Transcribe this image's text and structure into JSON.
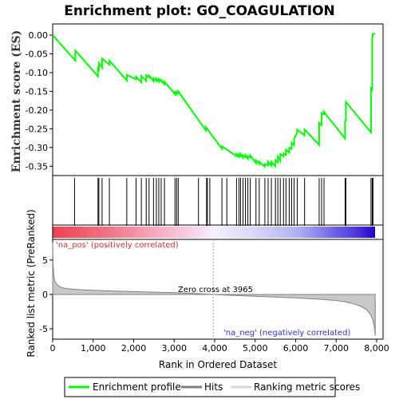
{
  "chart_data": {
    "type": "line",
    "title": "Enrichment plot: GO_COAGULATION",
    "top_panel": {
      "ylabel": "Enrichment score (ES)",
      "ylim": [
        -0.375,
        0.03
      ],
      "yticks": [
        0.0,
        -0.05,
        -0.1,
        -0.15,
        -0.2,
        -0.25,
        -0.3,
        -0.35
      ],
      "ytick_labels": [
        "0.00",
        "-0.05",
        "-0.10",
        "-0.15",
        "-0.20",
        "-0.25",
        "-0.30",
        "-0.35"
      ],
      "series": [
        {
          "name": "Enrichment profile",
          "color": "#00ff00",
          "x": [
            0,
            560,
            560,
            1120,
            1120,
            1140,
            1140,
            1220,
            1220,
            1400,
            1400,
            1830,
            1830,
            2060,
            2060,
            2190,
            2190,
            2310,
            2310,
            2380,
            2380,
            2490,
            2490,
            2560,
            2560,
            2620,
            2620,
            2680,
            2680,
            2760,
            2760,
            3020,
            3020,
            3060,
            3060,
            3100,
            3100,
            3780,
            3780,
            4180,
            4180,
            4540,
            4540,
            4600,
            4600,
            4640,
            4640,
            4700,
            4700,
            4760,
            4760,
            4820,
            4820,
            4880,
            4880,
            5020,
            5020,
            5100,
            5100,
            5240,
            5240,
            5320,
            5320,
            5400,
            5400,
            5500,
            5500,
            5560,
            5560,
            5620,
            5620,
            5700,
            5700,
            5760,
            5760,
            5840,
            5840,
            5900,
            5900,
            5960,
            5960,
            6040,
            6040,
            6220,
            6220,
            6580,
            6580,
            6640,
            6640,
            6700,
            6700,
            7220,
            7220,
            7240,
            7240,
            7860,
            7860,
            7890,
            7890,
            7910,
            7910,
            7960
          ],
          "y": [
            0.0,
            -0.068,
            -0.041,
            -0.11,
            -0.088,
            -0.091,
            -0.074,
            -0.087,
            -0.062,
            -0.079,
            -0.068,
            -0.121,
            -0.106,
            -0.118,
            -0.111,
            -0.126,
            -0.109,
            -0.122,
            -0.107,
            -0.113,
            -0.108,
            -0.123,
            -0.115,
            -0.122,
            -0.116,
            -0.124,
            -0.117,
            -0.123,
            -0.12,
            -0.131,
            -0.124,
            -0.158,
            -0.152,
            -0.158,
            -0.151,
            -0.155,
            -0.15,
            -0.254,
            -0.245,
            -0.303,
            -0.297,
            -0.323,
            -0.317,
            -0.325,
            -0.318,
            -0.323,
            -0.317,
            -0.327,
            -0.321,
            -0.326,
            -0.32,
            -0.33,
            -0.323,
            -0.327,
            -0.321,
            -0.342,
            -0.334,
            -0.344,
            -0.338,
            -0.351,
            -0.344,
            -0.348,
            -0.338,
            -0.349,
            -0.338,
            -0.35,
            -0.334,
            -0.34,
            -0.325,
            -0.336,
            -0.318,
            -0.324,
            -0.316,
            -0.32,
            -0.306,
            -0.314,
            -0.301,
            -0.304,
            -0.287,
            -0.294,
            -0.278,
            -0.259,
            -0.252,
            -0.268,
            -0.252,
            -0.293,
            -0.234,
            -0.24,
            -0.208,
            -0.211,
            -0.205,
            -0.276,
            -0.229,
            -0.228,
            -0.178,
            -0.26,
            -0.142,
            -0.146,
            -0.008,
            0.005,
            0.004,
            0.003
          ]
        }
      ]
    },
    "hits_x": [
      540,
      1120,
      1140,
      1220,
      1400,
      1830,
      2060,
      2190,
      2310,
      2380,
      2490,
      2560,
      2620,
      2680,
      2760,
      3020,
      3060,
      3100,
      3600,
      3800,
      3820,
      3880,
      4180,
      4300,
      4540,
      4600,
      4640,
      4700,
      4760,
      4820,
      4880,
      5020,
      5100,
      5240,
      5320,
      5400,
      5500,
      5560,
      5620,
      5700,
      5760,
      5840,
      5900,
      5960,
      6040,
      6220,
      6580,
      6640,
      6700,
      7220,
      7240,
      7860,
      7890,
      7910
    ],
    "bottom_panel": {
      "ylabel": "Ranked list metric (PreRanked)",
      "xlabel": "Rank in Ordered Dataset",
      "ylim": [
        -6.5,
        8.0
      ],
      "yticks": [
        5,
        0,
        -5
      ],
      "ytick_labels": [
        "5",
        "0",
        "-5"
      ],
      "metric_curve_x": [
        0,
        10,
        30,
        60,
        100,
        150,
        200,
        300,
        400,
        500,
        700,
        1000,
        1500,
        2000,
        2500,
        3000,
        3500,
        3965,
        4500,
        5000,
        5500,
        6000,
        6500,
        7000,
        7200,
        7400,
        7600,
        7750,
        7850,
        7900,
        7930,
        7950,
        7965
      ],
      "metric_curve_y": [
        7.5,
        4.5,
        2.6,
        1.9,
        1.5,
        1.2,
        1.05,
        0.9,
        0.82,
        0.76,
        0.68,
        0.6,
        0.5,
        0.41,
        0.33,
        0.25,
        0.15,
        0.0,
        -0.16,
        -0.27,
        -0.38,
        -0.5,
        -0.65,
        -0.88,
        -1.05,
        -1.3,
        -1.7,
        -2.2,
        -2.9,
        -3.6,
        -4.3,
        -5.0,
        -6.0
      ],
      "zero_cross_label": "Zero cross at 3965",
      "pos_label": "'na_pos' (positively correlated)",
      "neg_label": "'na_neg' (negatively correlated)"
    },
    "xlim": [
      0,
      8000
    ],
    "xticks": [
      0,
      1000,
      2000,
      3000,
      4000,
      5000,
      6000,
      7000,
      8000
    ],
    "xtick_labels": [
      "0",
      "1,000",
      "2,000",
      "3,000",
      "4,000",
      "5,000",
      "6,000",
      "7,000",
      "8,000"
    ],
    "n_genes": 7965,
    "legend": {
      "items": [
        "Enrichment profile",
        "Hits",
        "Ranking metric scores"
      ],
      "placement": "bottom"
    },
    "colors": {
      "profile": "#00ff00",
      "hits": "#000000",
      "pos_label": "#e03030",
      "neg_label": "#3030d0",
      "metric_fill": "#c8c8c8",
      "metric_line": "#808080"
    }
  }
}
